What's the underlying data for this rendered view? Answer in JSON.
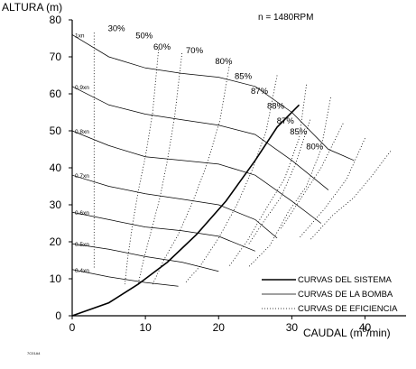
{
  "chart_data": {
    "type": "line",
    "ylabel": "ALTURA (m)",
    "xlabel_prefix": "CAUDAL (m",
    "xlabel_sup": "3",
    "xlabel_suffix": "/min)",
    "annotation": "n = 1480RPM",
    "corner_code": "7C01A4",
    "xlim": [
      0,
      45
    ],
    "ylim": [
      0,
      80
    ],
    "x_ticks": [
      0,
      10,
      20,
      30,
      40
    ],
    "y_ticks": [
      0,
      10,
      20,
      30,
      40,
      50,
      60,
      70,
      80
    ],
    "grid": false,
    "legend_position": "bottom-right",
    "legend": [
      {
        "label": "CURVAS DEL SISTEMA",
        "style": "solid-thick"
      },
      {
        "label": "CURVAS DE LA BOMBA",
        "style": "solid-thin"
      },
      {
        "label": "CURVAS DE EFICIENCIA",
        "style": "dotted"
      }
    ],
    "system_curve": {
      "x": [
        0,
        5,
        9,
        13,
        17,
        21,
        25,
        28,
        31
      ],
      "y": [
        0,
        3.5,
        8.5,
        14.5,
        22,
        31,
        42,
        51,
        57
      ]
    },
    "pump_curves": [
      {
        "name": "1xn",
        "x": [
          0,
          5,
          10,
          15,
          20,
          25,
          30,
          35,
          38.5
        ],
        "y": [
          76,
          70,
          67,
          65.5,
          64.5,
          62,
          55,
          45,
          42
        ]
      },
      {
        "name": "0.9xn",
        "x": [
          0,
          5,
          10,
          15,
          20,
          25,
          30,
          35
        ],
        "y": [
          62,
          57,
          54.5,
          53,
          51.5,
          49,
          42,
          34
        ]
      },
      {
        "name": "0.8xn",
        "x": [
          0,
          5,
          10,
          15,
          20,
          25,
          30,
          34
        ],
        "y": [
          50,
          46,
          43,
          42,
          41,
          38,
          31,
          25
        ]
      },
      {
        "name": "0.7xn",
        "x": [
          0,
          5,
          10,
          15,
          20,
          25,
          28
        ],
        "y": [
          38,
          35,
          33,
          31.5,
          30,
          26,
          21
        ]
      },
      {
        "name": "0.6xn",
        "x": [
          0,
          5,
          10,
          15,
          20,
          25
        ],
        "y": [
          28,
          26,
          24,
          23,
          21.5,
          17.5
        ]
      },
      {
        "name": "0.5xn",
        "x": [
          0,
          5,
          10,
          15,
          20
        ],
        "y": [
          19.5,
          18,
          16,
          14.5,
          12
        ]
      },
      {
        "name": "0.4xn",
        "x": [
          0,
          5,
          10,
          14.5
        ],
        "y": [
          12.5,
          10.5,
          9,
          8
        ]
      }
    ],
    "efficiency_curves": [
      {
        "label": "30%",
        "x": [
          3,
          3,
          3,
          3,
          3,
          3,
          3
        ],
        "y": [
          76.5,
          62,
          50,
          38,
          28,
          19.5,
          12.5
        ]
      },
      {
        "label": "50%",
        "x": [
          11.8,
          11,
          10,
          9,
          8.2,
          7.6,
          7.2
        ],
        "y": [
          72,
          55,
          43,
          33.5,
          24,
          16,
          8.5
        ]
      },
      {
        "label": "60%",
        "x": [
          15,
          14,
          13,
          12,
          10.8,
          9.8,
          9
        ],
        "y": [
          71,
          54,
          42,
          32,
          23,
          15.5,
          8.5
        ]
      },
      {
        "label": "70%",
        "x": [
          21.5,
          20.2,
          18.5,
          16.5,
          14.5,
          12.5,
          11
        ],
        "y": [
          68,
          53,
          41.5,
          31,
          22,
          15,
          8.5
        ]
      },
      {
        "label": "80%",
        "x": [
          28,
          26.5,
          24.5,
          22.5,
          20,
          17.5,
          15.5
        ],
        "y": [
          65,
          50,
          39,
          30,
          21,
          13.5,
          9
        ]
      },
      {
        "label": "85%",
        "x": [
          32,
          31,
          29,
          26.5,
          24,
          21.5
        ],
        "y": [
          62.5,
          48,
          37,
          29,
          20.5,
          13.5
        ]
      },
      {
        "label": "87%",
        "x": [
          35.3,
          34,
          32,
          29.5,
          27,
          24
        ],
        "y": [
          59,
          45,
          35,
          28,
          19,
          13
        ]
      },
      {
        "label": "88%",
        "x": [
          32.5,
          30.5,
          28.5,
          26,
          24
        ],
        "y": [
          53,
          41,
          32,
          25,
          19
        ]
      },
      {
        "label": "87%",
        "x": [
          37,
          34,
          31,
          28.5
        ],
        "y": [
          52,
          40,
          31,
          23.5
        ]
      },
      {
        "label": "85%",
        "x": [
          40,
          37.5,
          34.5,
          31
        ],
        "y": [
          48,
          37,
          29,
          21
        ]
      },
      {
        "label": "80%",
        "x": [
          43.5,
          41,
          38.5,
          35.5,
          32.5
        ],
        "y": [
          44.5,
          38,
          32,
          27,
          20.5
        ]
      }
    ],
    "efficiency_label_values": [
      {
        "label": "30%",
        "x": 11,
        "y": 77
      },
      {
        "label": "50%",
        "x": 19.5,
        "y": 75
      },
      {
        "label": "60%",
        "x": 25,
        "y": 72
      },
      {
        "label": "70%",
        "x": 35,
        "y": 71
      },
      {
        "label": "80%",
        "x": 44,
        "y": 68
      },
      {
        "label": "85%",
        "x": 50,
        "y": 64
      },
      {
        "label": "87%",
        "x": 55,
        "y": 60
      },
      {
        "label": "88%",
        "x": 60,
        "y": 56
      },
      {
        "label": "87%",
        "x": 63,
        "y": 52
      },
      {
        "label": "85%",
        "x": 67,
        "y": 49
      },
      {
        "label": "80%",
        "x": 72,
        "y": 45
      }
    ]
  }
}
